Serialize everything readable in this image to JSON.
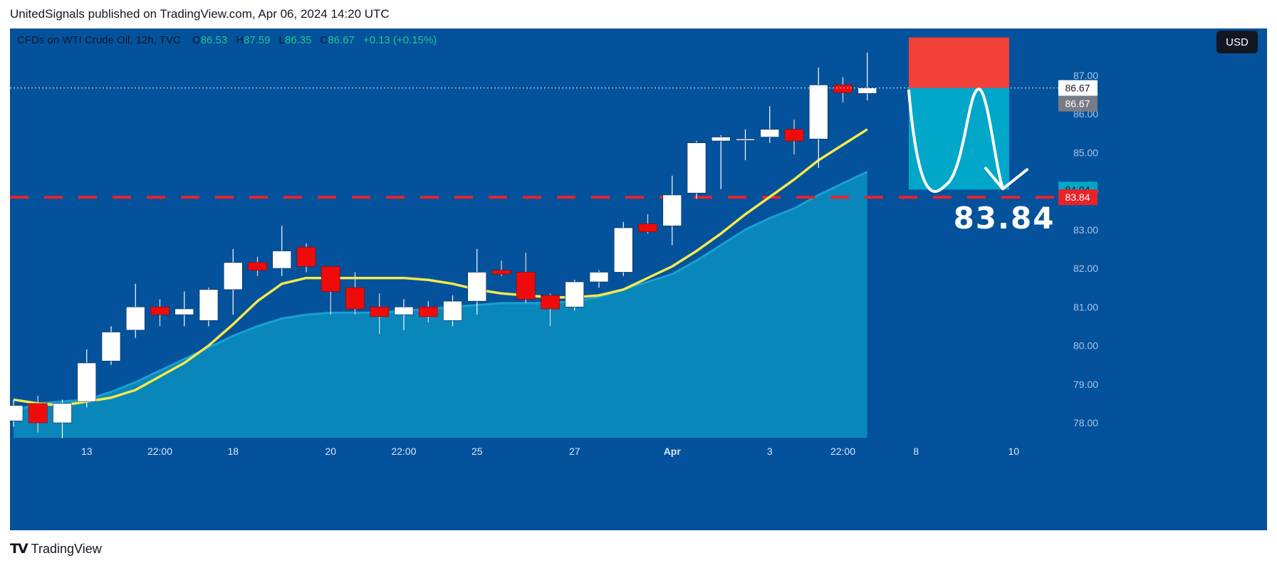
{
  "header": {
    "text": "UnitedSignals published on TradingView.com, Apr 06, 2024 14:20 UTC"
  },
  "footer": {
    "logo": "TV",
    "brand": "TradingView"
  },
  "colors": {
    "bg": "#04529b",
    "up": "#ffffff",
    "down": "#f00b0b",
    "ma": "#f5e94b",
    "area": "#0a8fc0",
    "stop": "#f23f37",
    "target": "#00a7c8",
    "level": "#e8222a"
  },
  "chart_data": {
    "type": "candlestick",
    "legend": {
      "symbol": "CFDs on WTI Crude Oil, 12h, TVC",
      "o_label": "O",
      "o": "86.53",
      "h_label": "H",
      "h": "87.59",
      "l_label": "L",
      "l": "86.35",
      "c_label": "C",
      "c": "86.67",
      "change": "+0.13 (+0.15%)"
    },
    "currency": "USD",
    "y_ticks": [
      "78.00",
      "79.00",
      "80.00",
      "81.00",
      "82.00",
      "83.00",
      "84.00",
      "85.00",
      "86.00",
      "87.00"
    ],
    "ylim": [
      77.6,
      88.0
    ],
    "x_ticks": [
      {
        "label": "13",
        "i": 3
      },
      {
        "label": "22:00",
        "i": 6
      },
      {
        "label": "18",
        "i": 9
      },
      {
        "label": "20",
        "i": 13
      },
      {
        "label": "22:00",
        "i": 16
      },
      {
        "label": "25",
        "i": 19
      },
      {
        "label": "27",
        "i": 23
      },
      {
        "label": "Apr",
        "i": 27
      },
      {
        "label": "3",
        "i": 31
      },
      {
        "label": "22:00",
        "i": 34
      },
      {
        "label": "8",
        "i": 37
      },
      {
        "label": "10",
        "i": 41
      }
    ],
    "candles": [
      {
        "o": 78.05,
        "h": 78.6,
        "l": 77.9,
        "c": 78.45
      },
      {
        "o": 78.5,
        "h": 78.7,
        "l": 77.75,
        "c": 78.0
      },
      {
        "o": 78.0,
        "h": 78.6,
        "l": 77.6,
        "c": 78.5
      },
      {
        "o": 78.55,
        "h": 79.9,
        "l": 78.4,
        "c": 79.55
      },
      {
        "o": 79.6,
        "h": 80.5,
        "l": 79.5,
        "c": 80.35
      },
      {
        "o": 80.4,
        "h": 81.6,
        "l": 80.2,
        "c": 81.0
      },
      {
        "o": 81.0,
        "h": 81.2,
        "l": 80.5,
        "c": 80.8
      },
      {
        "o": 80.8,
        "h": 81.4,
        "l": 80.5,
        "c": 80.95
      },
      {
        "o": 80.65,
        "h": 81.5,
        "l": 80.5,
        "c": 81.45
      },
      {
        "o": 81.45,
        "h": 82.5,
        "l": 80.8,
        "c": 82.15
      },
      {
        "o": 82.15,
        "h": 82.3,
        "l": 81.8,
        "c": 81.95
      },
      {
        "o": 82.0,
        "h": 83.1,
        "l": 81.8,
        "c": 82.45
      },
      {
        "o": 82.55,
        "h": 82.65,
        "l": 81.9,
        "c": 82.05
      },
      {
        "o": 82.05,
        "h": 82.05,
        "l": 80.8,
        "c": 81.4
      },
      {
        "o": 81.5,
        "h": 81.9,
        "l": 80.8,
        "c": 80.95
      },
      {
        "o": 81.0,
        "h": 81.35,
        "l": 80.3,
        "c": 80.75
      },
      {
        "o": 80.8,
        "h": 81.2,
        "l": 80.4,
        "c": 81.0
      },
      {
        "o": 81.0,
        "h": 81.15,
        "l": 80.6,
        "c": 80.75
      },
      {
        "o": 80.65,
        "h": 81.3,
        "l": 80.5,
        "c": 81.15
      },
      {
        "o": 81.15,
        "h": 82.5,
        "l": 80.8,
        "c": 81.9
      },
      {
        "o": 81.95,
        "h": 82.2,
        "l": 81.8,
        "c": 81.85
      },
      {
        "o": 81.9,
        "h": 82.4,
        "l": 81.1,
        "c": 81.2
      },
      {
        "o": 81.3,
        "h": 81.35,
        "l": 80.5,
        "c": 80.95
      },
      {
        "o": 81.0,
        "h": 81.7,
        "l": 80.9,
        "c": 81.65
      },
      {
        "o": 81.65,
        "h": 81.95,
        "l": 81.5,
        "c": 81.9
      },
      {
        "o": 81.9,
        "h": 83.2,
        "l": 81.8,
        "c": 83.05
      },
      {
        "o": 83.15,
        "h": 83.4,
        "l": 82.9,
        "c": 82.95
      },
      {
        "o": 83.1,
        "h": 84.4,
        "l": 82.6,
        "c": 83.9
      },
      {
        "o": 83.95,
        "h": 85.3,
        "l": 83.8,
        "c": 85.25
      },
      {
        "o": 85.3,
        "h": 85.45,
        "l": 84.05,
        "c": 85.4
      },
      {
        "o": 85.35,
        "h": 85.6,
        "l": 84.8,
        "c": 85.35
      },
      {
        "o": 85.4,
        "h": 86.2,
        "l": 85.25,
        "c": 85.6
      },
      {
        "o": 85.6,
        "h": 85.85,
        "l": 84.95,
        "c": 85.3
      },
      {
        "o": 85.35,
        "h": 87.2,
        "l": 84.6,
        "c": 86.75
      },
      {
        "o": 86.75,
        "h": 86.95,
        "l": 86.3,
        "c": 86.55
      },
      {
        "o": 86.53,
        "h": 87.59,
        "l": 86.35,
        "c": 86.67
      }
    ],
    "ma": [
      78.6,
      78.5,
      78.45,
      78.55,
      78.65,
      78.85,
      79.2,
      79.55,
      80.0,
      80.55,
      81.15,
      81.6,
      81.75,
      81.75,
      81.75,
      81.75,
      81.75,
      81.7,
      81.6,
      81.45,
      81.35,
      81.3,
      81.25,
      81.25,
      81.3,
      81.45,
      81.75,
      82.05,
      82.45,
      82.9,
      83.4,
      83.85,
      84.3,
      84.8,
      85.2,
      85.6
    ],
    "area": [
      78.3,
      78.5,
      78.55,
      78.6,
      78.8,
      79.05,
      79.35,
      79.65,
      79.95,
      80.25,
      80.5,
      80.7,
      80.8,
      80.85,
      80.85,
      80.85,
      80.9,
      80.95,
      81.0,
      81.05,
      81.1,
      81.1,
      81.1,
      81.15,
      81.25,
      81.45,
      81.65,
      81.85,
      82.2,
      82.6,
      83.0,
      83.3,
      83.55,
      83.9,
      84.2,
      84.5
    ],
    "position": {
      "entry": "86.67",
      "stop": "87.98",
      "target": "84.04",
      "entry_label": "86.67",
      "last_label": "86.67",
      "target_label": "84.04"
    },
    "level": {
      "value": "83.84",
      "label": "83.84",
      "annotation": "83.84"
    }
  }
}
